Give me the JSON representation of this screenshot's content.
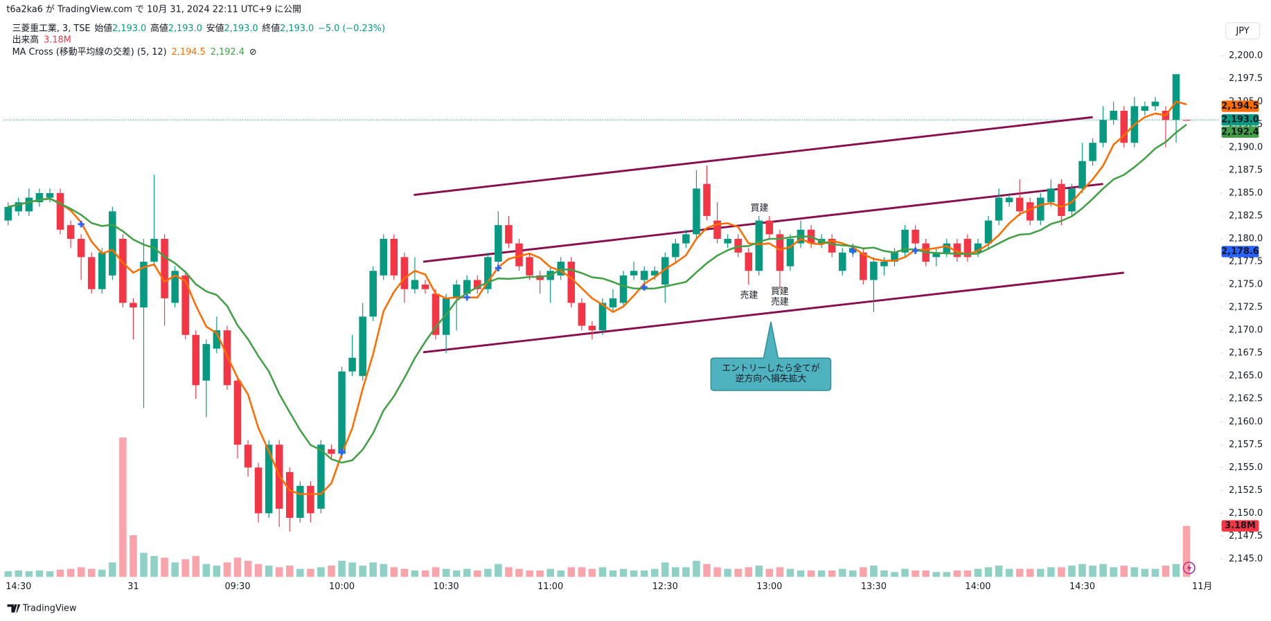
{
  "header": {
    "publish_line": "t6a2ka6 が TradingView.com で 10月 31, 2024 22:11 UTC+9 に公開",
    "symbol": "三菱重工業, 3, TSE",
    "ohlc": [
      {
        "label": "始値",
        "value": "2,193.0"
      },
      {
        "label": "高値",
        "value": "2,193.0"
      },
      {
        "label": "安値",
        "value": "2,193.0"
      },
      {
        "label": "終値",
        "value": "2,193.0"
      }
    ],
    "change": "−5.0 (−0.23%)",
    "volume_label": "出来高",
    "volume_value": "3.18M",
    "indicator": "MA Cross (移動平均線の交差) (5, 12)",
    "indicator_values": [
      "2,194.5",
      "2,192.4"
    ],
    "indicator_icon": "⊘"
  },
  "currency": "JPY",
  "footer": "TradingView",
  "chart_data": {
    "type": "candlestick",
    "up_color": "#089981",
    "down_color": "#f23645",
    "open": [
      2182,
      2183,
      2183,
      2184,
      2184.5,
      2185,
      2181.5,
      2180,
      2178,
      2174.5,
      2176,
      2180,
      2173,
      2172.5,
      2177.5,
      2180,
      2173,
      2176,
      2169.5,
      2164.5,
      2168,
      2170,
      2164.5,
      2157.5,
      2155,
      2150,
      2157.5,
      2154.5,
      2149.5,
      2153,
      2150.5,
      2157,
      2156.5,
      2165.5,
      2165,
      2171.5,
      2176,
      2180,
      2178,
      2174.5,
      2175,
      2174,
      2169.5,
      2173.5,
      2174,
      2175.5,
      2174.5,
      2177.5,
      2181.5,
      2179.5,
      2178,
      2176,
      2175.5,
      2176,
      2177.5,
      2173,
      2170.5,
      2170,
      2172.5,
      2173,
      2176,
      2175.5,
      2176,
      2175,
      2178,
      2179.5,
      2180.5,
      2186,
      2182,
      2179.5,
      2180,
      2178.5,
      2176.5,
      2182,
      2180.5,
      2177,
      2179.5,
      2181,
      2179.5,
      2180,
      2176.5,
      2178.5,
      2178.5,
      2175.5,
      2177,
      2177.5,
      2178.5,
      2181,
      2179.5,
      2178,
      2178.5,
      2179.5,
      2180,
      2178.5,
      2179.5,
      2182,
      2184,
      2184.5,
      2184,
      2182,
      2184,
      2186,
      2183,
      2185.5,
      2188.5,
      2190.5,
      2193,
      2194,
      2190.5,
      2194,
      2194.5,
      2194,
      2193,
      2193
    ],
    "high": [
      2184,
      2184.5,
      2185.5,
      2185.5,
      2185.5,
      2185.5,
      2182,
      2180.5,
      2178.5,
      2179,
      2183.5,
      2180.5,
      2173.5,
      2180,
      2187,
      2180.5,
      2177,
      2176.5,
      2170,
      2169,
      2171.5,
      2170.5,
      2165,
      2158,
      2155.5,
      2158,
      2158,
      2155,
      2153.5,
      2153.5,
      2158,
      2157.5,
      2166,
      2169.5,
      2173,
      2177,
      2180.5,
      2180.5,
      2178.5,
      2178,
      2175.5,
      2174.5,
      2174,
      2175.5,
      2176,
      2176,
      2178.5,
      2183,
      2182.5,
      2180,
      2178.5,
      2176.5,
      2177,
      2178,
      2178,
      2173.5,
      2171,
      2173.5,
      2174.5,
      2176.5,
      2177.5,
      2177,
      2177,
      2178.5,
      2180,
      2181,
      2187.5,
      2188,
      2184,
      2180.5,
      2180.5,
      2179,
      2182.5,
      2182.5,
      2181,
      2180.5,
      2182,
      2181.5,
      2180.5,
      2180.5,
      2179,
      2179.5,
      2179,
      2178,
      2178,
      2179,
      2181.5,
      2181.5,
      2180,
      2179,
      2180,
      2180,
      2180.5,
      2180,
      2182.5,
      2185.5,
      2185,
      2186.5,
      2184.5,
      2185,
      2186.5,
      2186.5,
      2186,
      2190.5,
      2191,
      2194.5,
      2195,
      2194.5,
      2195.5,
      2195,
      2195.5,
      2194.5,
      2198,
      2193
    ],
    "low": [
      2181.5,
      2182.5,
      2182.5,
      2183.5,
      2184,
      2180.5,
      2179,
      2175.5,
      2174,
      2174,
      2175.5,
      2172.5,
      2169,
      2161.5,
      2177,
      2170.5,
      2172.5,
      2169,
      2162.5,
      2160.5,
      2167.5,
      2163.5,
      2156,
      2154,
      2149,
      2149.5,
      2148.5,
      2148,
      2149,
      2149,
      2150,
      2156,
      2156,
      2165,
      2164.5,
      2171,
      2175.5,
      2175.5,
      2173,
      2174,
      2174,
      2169,
      2167.5,
      2170,
      2173.5,
      2174,
      2174,
      2177,
      2179,
      2176.5,
      2175.5,
      2174,
      2173,
      2175.5,
      2172.5,
      2170,
      2169,
      2169.5,
      2172,
      2172.5,
      2175.5,
      2175,
      2175.5,
      2173,
      2177.5,
      2179,
      2180,
      2182,
      2179.5,
      2179,
      2178,
      2175,
      2176,
      2180,
      2174.5,
      2176.5,
      2179,
      2179,
      2179,
      2178,
      2176,
      2178,
      2175,
      2172,
      2176,
      2177,
      2178,
      2179,
      2177,
      2177,
      2178,
      2177.5,
      2177.5,
      2178,
      2179,
      2181.5,
      2183.5,
      2182.5,
      2181.5,
      2181.5,
      2183.5,
      2181.5,
      2182.5,
      2185,
      2188,
      2190,
      2192.5,
      2190,
      2190,
      2193.5,
      2194,
      2190,
      2190.5,
      2193
    ],
    "close": [
      2183.5,
      2184,
      2184.5,
      2185,
      2185,
      2181,
      2180,
      2178,
      2174.5,
      2178.5,
      2183,
      2173,
      2172.5,
      2177.5,
      2180,
      2173.5,
      2176.5,
      2169.5,
      2164,
      2168.5,
      2170,
      2164,
      2157.5,
      2155,
      2150,
      2157.5,
      2150.5,
      2149.5,
      2153,
      2150,
      2157.5,
      2156.5,
      2165.5,
      2167,
      2171.5,
      2176.5,
      2180,
      2176,
      2174.5,
      2175.5,
      2174.5,
      2169.5,
      2173.5,
      2175,
      2175.5,
      2174.5,
      2178,
      2181.5,
      2179.5,
      2177,
      2176,
      2175.5,
      2176.5,
      2177.5,
      2173,
      2170.5,
      2170,
      2173,
      2173.5,
      2176,
      2176.5,
      2176.5,
      2176.5,
      2178,
      2179.5,
      2180.5,
      2185.5,
      2182.5,
      2180,
      2180,
      2178.5,
      2176.5,
      2182,
      2180.5,
      2176.5,
      2180,
      2181,
      2179.5,
      2180,
      2178.5,
      2178.5,
      2179,
      2175.5,
      2177.5,
      2177.5,
      2178.5,
      2181,
      2179.5,
      2177.5,
      2178.5,
      2179.5,
      2178,
      2178,
      2179.5,
      2182,
      2184.5,
      2184.5,
      2183,
      2182,
      2184.5,
      2185.5,
      2182.5,
      2185.5,
      2188.5,
      2190.5,
      2193,
      2194,
      2190.5,
      2194.5,
      2194.5,
      2195,
      2193,
      2198,
      2193
    ],
    "volume": [
      0.35,
      0.4,
      0.35,
      0.4,
      0.35,
      0.45,
      0.5,
      0.6,
      0.5,
      0.45,
      0.9,
      8.7,
      2.6,
      1.5,
      1.3,
      1.2,
      0.9,
      1.1,
      1.3,
      0.8,
      0.7,
      0.9,
      1.2,
      1.0,
      0.8,
      0.7,
      0.6,
      0.7,
      0.5,
      0.5,
      0.6,
      0.7,
      1.0,
      0.9,
      0.7,
      0.9,
      0.8,
      0.6,
      0.5,
      0.4,
      0.4,
      0.6,
      0.5,
      0.4,
      0.5,
      0.4,
      0.5,
      0.8,
      0.6,
      0.5,
      0.4,
      0.4,
      0.5,
      0.4,
      0.6,
      0.6,
      0.5,
      0.6,
      0.4,
      0.5,
      0.4,
      0.4,
      0.5,
      0.9,
      0.6,
      0.6,
      1.0,
      0.8,
      0.6,
      0.5,
      0.5,
      0.6,
      0.7,
      0.5,
      0.6,
      0.5,
      0.4,
      0.4,
      0.4,
      0.4,
      0.5,
      0.4,
      0.6,
      0.7,
      0.4,
      0.3,
      0.5,
      0.4,
      0.4,
      0.3,
      0.3,
      0.4,
      0.4,
      0.5,
      0.6,
      0.7,
      0.5,
      0.5,
      0.5,
      0.5,
      0.6,
      0.6,
      0.7,
      0.8,
      0.7,
      0.8,
      0.6,
      0.7,
      0.6,
      0.5,
      0.5,
      0.7,
      0.8,
      3.18
    ],
    "volume_badge": {
      "value": 3.18,
      "label": "3.18M",
      "color": "#f23645"
    },
    "volume_ylim": [
      0,
      35.6
    ],
    "xlim": [
      -0.39,
      116.2
    ],
    "ylim": [
      2143.05,
      2205.4
    ],
    "xticks": [
      {
        "value": 1,
        "label": "14:30"
      },
      {
        "value": 12,
        "label": "31"
      },
      {
        "value": 22,
        "label": "09:30"
      },
      {
        "value": 32,
        "label": "10:00"
      },
      {
        "value": 42,
        "label": "10:30"
      },
      {
        "value": 52,
        "label": "11:00"
      },
      {
        "value": 63,
        "label": "12:30"
      },
      {
        "value": 73,
        "label": "13:00"
      },
      {
        "value": 83,
        "label": "13:30"
      },
      {
        "value": 93,
        "label": "14:00"
      },
      {
        "value": 103,
        "label": "14:30"
      },
      {
        "value": 114.5,
        "label": "11月"
      }
    ],
    "yticks": [
      {
        "value": 2145,
        "label": "2,145.0"
      },
      {
        "value": 2147.5,
        "label": "2,147.5"
      },
      {
        "value": 2150,
        "label": "2,150.0"
      },
      {
        "value": 2152.5,
        "label": "2,152.5"
      },
      {
        "value": 2155,
        "label": "2,155.0"
      },
      {
        "value": 2157.5,
        "label": "2,157.5"
      },
      {
        "value": 2160,
        "label": "2,160.0"
      },
      {
        "value": 2162.5,
        "label": "2,162.5"
      },
      {
        "value": 2165,
        "label": "2,165.0"
      },
      {
        "value": 2167.5,
        "label": "2,167.5"
      },
      {
        "value": 2170,
        "label": "2,170.0"
      },
      {
        "value": 2172.5,
        "label": "2,172.5"
      },
      {
        "value": 2175,
        "label": "2,175.0"
      },
      {
        "value": 2177.5,
        "label": "2,177.5"
      },
      {
        "value": 2180,
        "label": "2,180.0"
      },
      {
        "value": 2182.5,
        "label": "2,182.5"
      },
      {
        "value": 2185,
        "label": "2,185.0"
      },
      {
        "value": 2187.5,
        "label": "2,187.5"
      },
      {
        "value": 2190,
        "label": "2,190.0"
      },
      {
        "value": 2192.5,
        "label": "2,192.5"
      },
      {
        "value": 2195,
        "label": "2,195.0"
      },
      {
        "value": 2197.5,
        "label": "2,197.5"
      },
      {
        "value": 2200,
        "label": "2,200.0"
      }
    ],
    "moving_averages": [
      {
        "period": 5,
        "color": "#ff6d00"
      },
      {
        "period": 12,
        "color": "#43a047"
      }
    ],
    "trend_color": "#880e4f",
    "trend_lines": [
      {
        "x": [
          38.9,
          104
        ],
        "y": [
          2184.8,
          2193.3
        ]
      },
      {
        "x": [
          39.8,
          105
        ],
        "y": [
          2177.5,
          2186
        ]
      },
      {
        "x": [
          39.8,
          107
        ],
        "y": [
          2167.6,
          2176.3
        ]
      }
    ],
    "cross_color": "#2962ff",
    "cross_markers": [
      {
        "index": 7,
        "price": 2181.6
      },
      {
        "index": 32,
        "price": 2156.7
      },
      {
        "index": 44,
        "price": 2173.6
      },
      {
        "index": 47,
        "price": 2176.8
      },
      {
        "index": 61,
        "price": 2174.7
      },
      {
        "index": 81,
        "price": 2178.7
      },
      {
        "index": 87,
        "price": 2178.7
      }
    ],
    "price_labels": [
      {
        "value": 2194.5,
        "label": "2,194.5",
        "color": "#ff6d00"
      },
      {
        "value": 2193.0,
        "label": "2,193.0",
        "color": "#089981",
        "dotted": true
      },
      {
        "value": 2192.4,
        "label": "2,192.4",
        "color": "#43a047"
      },
      {
        "value": 2178.6,
        "label": "2,178.6",
        "color": "#2962ff"
      }
    ],
    "annotations": [
      "買建",
      "売建",
      "買建",
      "売建"
    ],
    "callout": [
      "エントリーしたら全てが",
      "逆方向へ損失拡大"
    ]
  }
}
